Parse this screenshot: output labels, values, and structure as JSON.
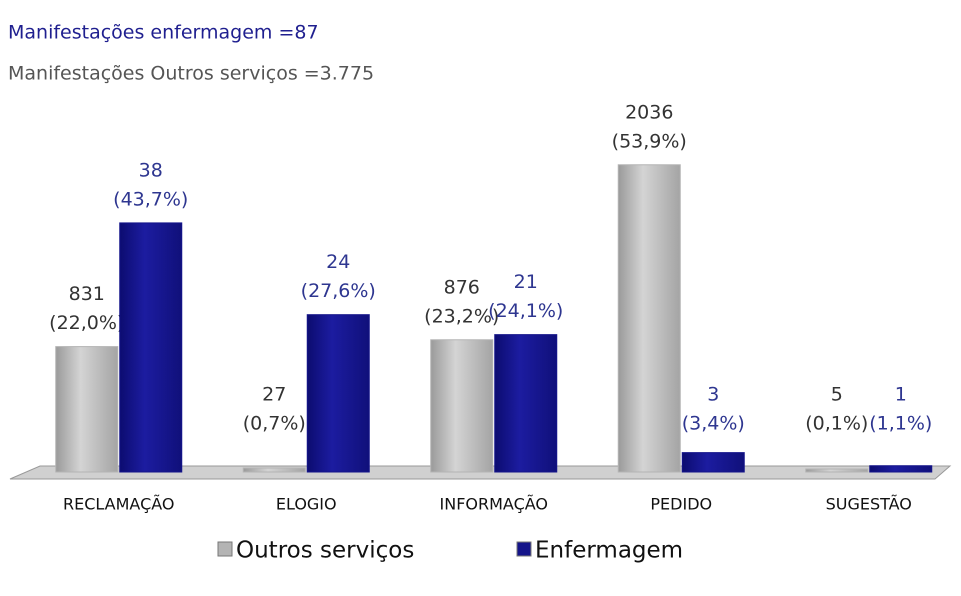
{
  "chart_data": {
    "type": "bar",
    "title": "Manifestações enfermagem =87",
    "subtitle": "Manifestações Outros serviços =3.775",
    "categories": [
      "RECLAMAÇÃO",
      "ELOGIO",
      "INFORMAÇÃO",
      "PEDIDO",
      "SUGESTÃO"
    ],
    "series": [
      {
        "name": "Outros serviços",
        "color": "#b4b4b4",
        "counts": [
          831,
          27,
          876,
          2036,
          5
        ],
        "values": [
          22.0,
          0.7,
          23.2,
          53.9,
          0.1
        ],
        "value_labels": [
          "(22,0%)",
          "(0,7%)",
          "(23,2%)",
          "(53,9%)",
          "(0,1%)"
        ]
      },
      {
        "name": "Enfermagem",
        "color": "#14148a",
        "counts": [
          38,
          24,
          21,
          3,
          1
        ],
        "values": [
          43.7,
          27.6,
          24.1,
          3.4,
          1.1
        ],
        "value_labels": [
          "(43,7%)",
          "(27,6%)",
          "(24,1%)",
          "(3,4%)",
          "(1,1%)"
        ]
      }
    ],
    "legend": "bottom"
  }
}
